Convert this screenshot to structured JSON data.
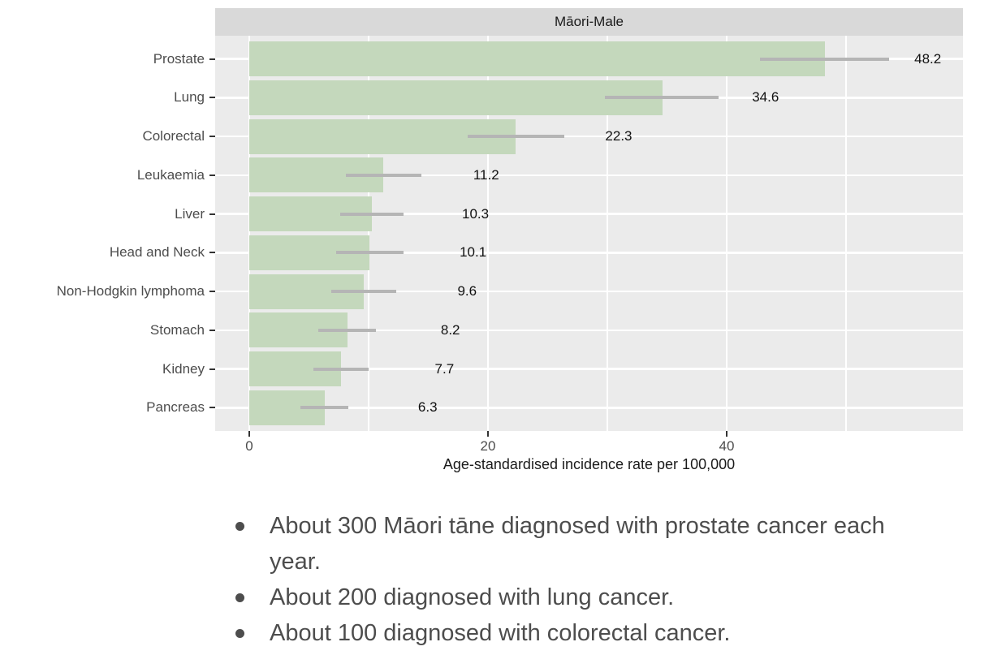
{
  "chart_data": {
    "type": "bar",
    "orientation": "horizontal",
    "title": "Māori-Male",
    "categories": [
      "Prostate",
      "Lung",
      "Colorectal",
      "Leukaemia",
      "Liver",
      "Head and Neck",
      "Non-Hodgkin lymphoma",
      "Stomach",
      "Kidney",
      "Pancreas"
    ],
    "values": [
      48.2,
      34.6,
      22.3,
      11.2,
      10.3,
      10.1,
      9.6,
      8.2,
      7.7,
      6.3
    ],
    "ci_low": [
      42.8,
      29.8,
      18.3,
      8.1,
      7.6,
      7.3,
      6.9,
      5.8,
      5.4,
      4.3
    ],
    "ci_high": [
      53.6,
      39.3,
      26.4,
      14.4,
      12.9,
      12.9,
      12.3,
      10.6,
      10.0,
      8.3
    ],
    "xlabel": "Age-standardised incidence rate per 100,000",
    "x_ticks": [
      0,
      20,
      40
    ],
    "x_minor_ticks": [
      10,
      30,
      50
    ],
    "xlim": [
      -2.9,
      59.8
    ],
    "legend": "none",
    "grid": "on",
    "colors": {
      "bar": "#c4d8bc",
      "panel_bg": "#ebebeb",
      "strip_bg": "#d9d9d9",
      "errorbar": "#b5b5b5",
      "gridline": "#ffffff"
    }
  },
  "notes": {
    "bullets": [
      "About 300 Māori tāne diagnosed with prostate cancer each year.",
      "About 200 diagnosed with lung cancer.",
      "About 100 diagnosed with colorectal cancer."
    ]
  }
}
